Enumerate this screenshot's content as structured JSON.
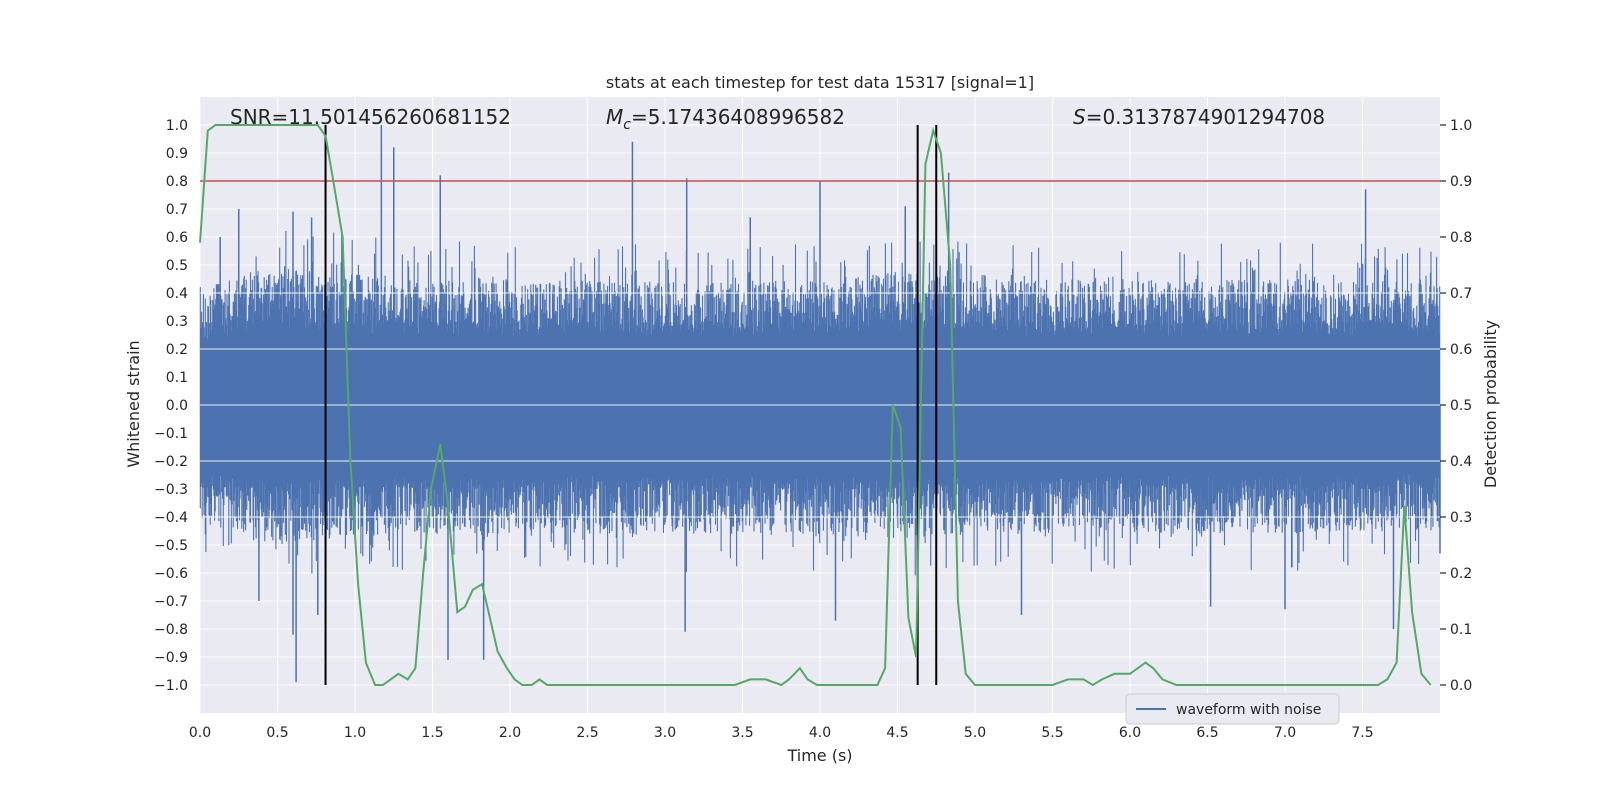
{
  "chart_data": {
    "type": "line",
    "title": "stats at each timestep for test data 15317 [signal=1]",
    "xlabel": "Time (s)",
    "ylabel_left": "Whitened strain",
    "ylabel_right": "Detection probability",
    "xlim": [
      0,
      8.0
    ],
    "ylim_left": [
      -1.1,
      1.1
    ],
    "ylim_right": [
      -0.05,
      1.05
    ],
    "x_ticks": [
      "0.0",
      "0.5",
      "1.0",
      "1.5",
      "2.0",
      "2.5",
      "3.0",
      "3.5",
      "4.0",
      "4.5",
      "5.0",
      "5.5",
      "6.0",
      "6.5",
      "7.0",
      "7.5"
    ],
    "x_tick_values": [
      0,
      0.5,
      1,
      1.5,
      2,
      2.5,
      3,
      3.5,
      4,
      4.5,
      5,
      5.5,
      6,
      6.5,
      7,
      7.5
    ],
    "y_left_ticks": [
      "1.0",
      "0.9",
      "0.8",
      "0.7",
      "0.6",
      "0.5",
      "0.4",
      "0.3",
      "0.2",
      "0.1",
      "0.0",
      "−0.1",
      "−0.2",
      "−0.3",
      "−0.4",
      "−0.5",
      "−0.6",
      "−0.7",
      "−0.8",
      "−0.9",
      "−1.0"
    ],
    "y_left_tick_values": [
      1.0,
      0.9,
      0.8,
      0.7,
      0.6,
      0.5,
      0.4,
      0.3,
      0.2,
      0.1,
      0.0,
      -0.1,
      -0.2,
      -0.3,
      -0.4,
      -0.5,
      -0.6,
      -0.7,
      -0.8,
      -0.9,
      -1.0
    ],
    "y_right_ticks": [
      "1.0",
      "0.9",
      "0.8",
      "0.7",
      "0.6",
      "0.5",
      "0.4",
      "0.3",
      "0.2",
      "0.1",
      "0.0"
    ],
    "y_right_tick_values": [
      1.0,
      0.9,
      0.8,
      0.7,
      0.6,
      0.5,
      0.4,
      0.3,
      0.2,
      0.1,
      0.0
    ],
    "annotations": {
      "snr": "SNR=11.501456260681152",
      "mc_symbol": "M",
      "mc_sub": "c",
      "mc_value": "=5.17436408996582",
      "s_symbol": "S",
      "s_value": "=0.3137874901294708"
    },
    "legend": {
      "label": "waveform with noise",
      "position": "lower-right"
    },
    "threshold": {
      "value": 0.9,
      "axis": "right",
      "color": "#c44e52"
    },
    "vertical_lines": [
      0.81,
      4.63,
      4.75
    ],
    "series": [
      {
        "name": "waveform with noise",
        "axis": "left",
        "color": "#4c72b0",
        "kind": "noise-envelope",
        "envelope_upper": [
          [
            0.0,
            0.42
          ],
          [
            0.2,
            0.45
          ],
          [
            0.5,
            0.5
          ],
          [
            1.0,
            0.47
          ],
          [
            1.5,
            0.45
          ],
          [
            2.0,
            0.45
          ],
          [
            3.0,
            0.44
          ],
          [
            4.0,
            0.45
          ],
          [
            4.5,
            0.48
          ],
          [
            5.0,
            0.45
          ],
          [
            6.0,
            0.45
          ],
          [
            7.0,
            0.45
          ],
          [
            8.0,
            0.44
          ]
        ],
        "envelope_lower": [
          [
            0.0,
            -0.42
          ],
          [
            0.2,
            -0.45
          ],
          [
            0.5,
            -0.5
          ],
          [
            1.0,
            -0.47
          ],
          [
            1.5,
            -0.46
          ],
          [
            2.0,
            -0.46
          ],
          [
            3.0,
            -0.46
          ],
          [
            4.0,
            -0.46
          ],
          [
            4.5,
            -0.48
          ],
          [
            5.0,
            -0.46
          ],
          [
            6.0,
            -0.46
          ],
          [
            7.0,
            -0.46
          ],
          [
            8.0,
            -0.44
          ]
        ],
        "peaks": [
          [
            0.13,
            0.6
          ],
          [
            0.25,
            0.7
          ],
          [
            0.6,
            0.69
          ],
          [
            0.72,
            0.67
          ],
          [
            1.17,
            1.0
          ],
          [
            1.25,
            0.92
          ],
          [
            1.55,
            0.82
          ],
          [
            2.79,
            0.94
          ],
          [
            3.14,
            0.81
          ],
          [
            3.55,
            0.67
          ],
          [
            4.0,
            0.8
          ],
          [
            4.55,
            0.71
          ],
          [
            4.83,
            0.83
          ],
          [
            7.52,
            0.77
          ],
          [
            0.38,
            -0.7
          ],
          [
            0.6,
            -0.82
          ],
          [
            0.62,
            -0.99
          ],
          [
            0.76,
            -0.75
          ],
          [
            1.6,
            -0.91
          ],
          [
            1.83,
            -0.91
          ],
          [
            3.13,
            -0.81
          ],
          [
            4.1,
            -0.77
          ],
          [
            5.3,
            -0.75
          ],
          [
            6.52,
            -0.72
          ],
          [
            7.0,
            -0.73
          ],
          [
            7.7,
            -0.8
          ],
          [
            8.0,
            -0.53
          ]
        ]
      },
      {
        "name": "detection probability",
        "axis": "right",
        "color": "#55a868",
        "x": [
          0.0,
          0.05,
          0.1,
          0.15,
          0.2,
          0.3,
          0.4,
          0.5,
          0.6,
          0.7,
          0.76,
          0.81,
          0.86,
          0.92,
          0.97,
          1.02,
          1.07,
          1.13,
          1.18,
          1.23,
          1.28,
          1.34,
          1.39,
          1.44,
          1.49,
          1.55,
          1.6,
          1.66,
          1.71,
          1.76,
          1.82,
          1.87,
          1.92,
          1.98,
          2.03,
          2.08,
          2.14,
          2.19,
          2.24,
          2.29,
          2.35,
          2.5,
          2.7,
          2.9,
          3.1,
          3.3,
          3.45,
          3.55,
          3.65,
          3.75,
          3.8,
          3.87,
          3.92,
          3.98,
          4.1,
          4.2,
          4.3,
          4.37,
          4.42,
          4.47,
          4.52,
          4.57,
          4.62,
          4.68,
          4.73,
          4.78,
          4.84,
          4.89,
          4.94,
          5.0,
          5.1,
          5.3,
          5.5,
          5.6,
          5.7,
          5.76,
          5.82,
          5.9,
          6.0,
          6.05,
          6.1,
          6.15,
          6.21,
          6.3,
          6.5,
          6.7,
          6.9,
          7.0,
          7.1,
          7.3,
          7.5,
          7.6,
          7.66,
          7.72,
          7.77,
          7.82,
          7.88,
          7.94
        ],
        "y": [
          0.79,
          0.99,
          1.0,
          1.0,
          1.0,
          1.0,
          1.0,
          1.0,
          1.0,
          1.0,
          1.0,
          0.98,
          0.9,
          0.8,
          0.4,
          0.18,
          0.04,
          0.0,
          0.0,
          0.01,
          0.02,
          0.01,
          0.03,
          0.2,
          0.35,
          0.43,
          0.32,
          0.13,
          0.14,
          0.17,
          0.18,
          0.12,
          0.06,
          0.03,
          0.01,
          0.0,
          0.0,
          0.01,
          0.0,
          0.0,
          0.0,
          0.0,
          0.0,
          0.0,
          0.0,
          0.0,
          0.0,
          0.01,
          0.01,
          0.0,
          0.01,
          0.03,
          0.01,
          0.0,
          0.0,
          0.0,
          0.0,
          0.0,
          0.03,
          0.5,
          0.46,
          0.12,
          0.05,
          0.93,
          0.99,
          0.95,
          0.75,
          0.15,
          0.02,
          0.0,
          0.0,
          0.0,
          0.0,
          0.01,
          0.01,
          0.0,
          0.01,
          0.02,
          0.02,
          0.03,
          0.04,
          0.03,
          0.01,
          0.0,
          0.0,
          0.0,
          0.0,
          0.0,
          0.0,
          0.0,
          0.0,
          0.0,
          0.01,
          0.04,
          0.32,
          0.13,
          0.02,
          0.0
        ]
      }
    ]
  }
}
